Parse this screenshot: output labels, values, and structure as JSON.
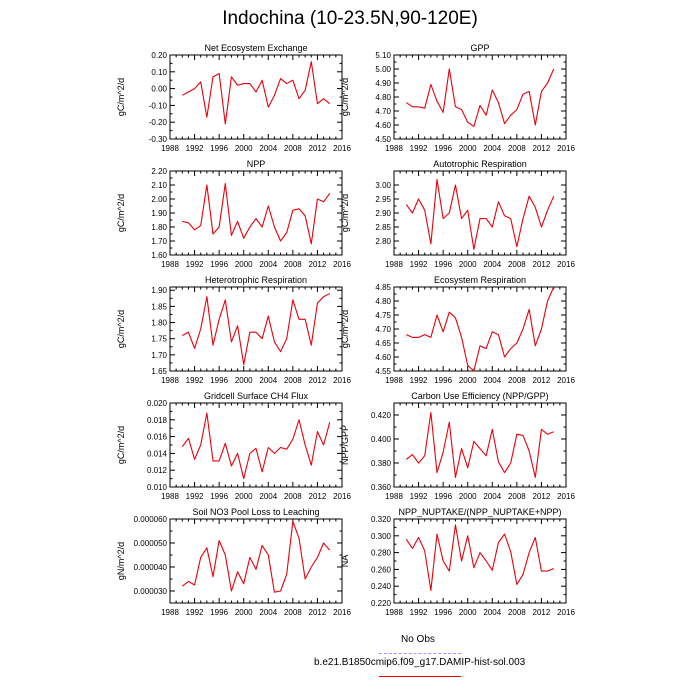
{
  "title": "Indochina (10-23.5N,90-120E)",
  "colors": {
    "series": "#e8000b",
    "obs": "#9999ff",
    "axis": "#000000"
  },
  "legend": {
    "obs_label": "No Obs",
    "model_label": "b.e21.B1850cmip6.f09_g17.DAMIP-hist-sol.003"
  },
  "x_ticks": [
    "1988",
    "1992",
    "1996",
    "2000",
    "2004",
    "2008",
    "2012",
    "2016"
  ],
  "chart_data": [
    {
      "type": "line",
      "title": "Net Ecosystem Exchange",
      "ylabel": "gC/m^2/d",
      "xlim": [
        1988,
        2016
      ],
      "ylim": [
        -0.3,
        0.2
      ],
      "y_ticks": [
        "0.20",
        "0.10",
        "0.00",
        "-0.10",
        "-0.20",
        "-0.30"
      ],
      "x": [
        1990,
        1991,
        1992,
        1993,
        1994,
        1995,
        1996,
        1997,
        1998,
        1999,
        2000,
        2001,
        2002,
        2003,
        2004,
        2005,
        2006,
        2007,
        2008,
        2009,
        2010,
        2011,
        2012,
        2013,
        2014
      ],
      "y": [
        -0.04,
        -0.02,
        0.0,
        0.04,
        -0.17,
        0.07,
        0.09,
        -0.21,
        0.07,
        0.02,
        0.03,
        0.03,
        -0.02,
        0.05,
        -0.11,
        -0.04,
        0.06,
        0.03,
        0.05,
        -0.06,
        -0.01,
        0.16,
        -0.09,
        -0.06,
        -0.09
      ]
    },
    {
      "type": "line",
      "title": "GPP",
      "ylabel": "gC/m^2/d",
      "xlim": [
        1988,
        2016
      ],
      "ylim": [
        4.5,
        5.1
      ],
      "y_ticks": [
        "5.10",
        "5.00",
        "4.90",
        "4.80",
        "4.70",
        "4.60",
        "4.50"
      ],
      "x": [
        1990,
        1991,
        1992,
        1993,
        1994,
        1995,
        1996,
        1997,
        1998,
        1999,
        2000,
        2001,
        2002,
        2003,
        2004,
        2005,
        2006,
        2007,
        2008,
        2009,
        2010,
        2011,
        2012,
        2013,
        2014
      ],
      "y": [
        4.76,
        4.73,
        4.73,
        4.72,
        4.89,
        4.77,
        4.69,
        5.0,
        4.73,
        4.71,
        4.62,
        4.59,
        4.74,
        4.67,
        4.85,
        4.76,
        4.61,
        4.67,
        4.71,
        4.82,
        4.84,
        4.6,
        4.84,
        4.9,
        5.0
      ]
    },
    {
      "type": "line",
      "title": "NPP",
      "ylabel": "gC/m^2/d",
      "xlim": [
        1988,
        2016
      ],
      "ylim": [
        1.6,
        2.2
      ],
      "y_ticks": [
        "2.20",
        "2.10",
        "2.00",
        "1.90",
        "1.80",
        "1.70",
        "1.60"
      ],
      "x": [
        1990,
        1991,
        1992,
        1993,
        1994,
        1995,
        1996,
        1997,
        1998,
        1999,
        2000,
        2001,
        2002,
        2003,
        2004,
        2005,
        2006,
        2007,
        2008,
        2009,
        2010,
        2011,
        2012,
        2013,
        2014
      ],
      "y": [
        1.84,
        1.83,
        1.78,
        1.81,
        2.1,
        1.75,
        1.8,
        2.11,
        1.74,
        1.84,
        1.72,
        1.8,
        1.86,
        1.8,
        1.95,
        1.8,
        1.7,
        1.76,
        1.92,
        1.93,
        1.88,
        1.68,
        2.0,
        1.98,
        2.04
      ]
    },
    {
      "type": "line",
      "title": "Autotrophic Respiration",
      "ylabel": "gC/m^2/d",
      "xlim": [
        1988,
        2016
      ],
      "ylim": [
        2.75,
        3.05
      ],
      "y_ticks": [
        "3.00",
        "2.95",
        "2.90",
        "2.85",
        "2.80"
      ],
      "x": [
        1990,
        1991,
        1992,
        1993,
        1994,
        1995,
        1996,
        1997,
        1998,
        1999,
        2000,
        2001,
        2002,
        2003,
        2004,
        2005,
        2006,
        2007,
        2008,
        2009,
        2010,
        2011,
        2012,
        2013,
        2014
      ],
      "y": [
        2.93,
        2.9,
        2.95,
        2.91,
        2.79,
        3.02,
        2.88,
        2.9,
        3.0,
        2.88,
        2.91,
        2.77,
        2.88,
        2.88,
        2.85,
        2.94,
        2.89,
        2.88,
        2.78,
        2.88,
        2.96,
        2.92,
        2.85,
        2.91,
        2.96
      ]
    },
    {
      "type": "line",
      "title": "Heterotrophic Respiration",
      "ylabel": "gC/m^2/d",
      "xlim": [
        1988,
        2016
      ],
      "ylim": [
        1.65,
        1.91
      ],
      "y_ticks": [
        "1.90",
        "1.85",
        "1.80",
        "1.75",
        "1.70",
        "1.65"
      ],
      "x": [
        1990,
        1991,
        1992,
        1993,
        1994,
        1995,
        1996,
        1997,
        1998,
        1999,
        2000,
        2001,
        2002,
        2003,
        2004,
        2005,
        2006,
        2007,
        2008,
        2009,
        2010,
        2011,
        2012,
        2013,
        2014
      ],
      "y": [
        1.76,
        1.77,
        1.72,
        1.78,
        1.88,
        1.73,
        1.81,
        1.87,
        1.74,
        1.79,
        1.67,
        1.77,
        1.77,
        1.75,
        1.82,
        1.74,
        1.71,
        1.75,
        1.87,
        1.81,
        1.81,
        1.73,
        1.86,
        1.88,
        1.89
      ]
    },
    {
      "type": "line",
      "title": "Ecosystem Respiration",
      "ylabel": "gC/m^2/d",
      "xlim": [
        1988,
        2016
      ],
      "ylim": [
        4.55,
        4.85
      ],
      "y_ticks": [
        "4.85",
        "4.80",
        "4.75",
        "4.70",
        "4.65",
        "4.60",
        "4.55"
      ],
      "x": [
        1990,
        1991,
        1992,
        1993,
        1994,
        1995,
        1996,
        1997,
        1998,
        1999,
        2000,
        2001,
        2002,
        2003,
        2004,
        2005,
        2006,
        2007,
        2008,
        2009,
        2010,
        2011,
        2012,
        2013,
        2014
      ],
      "y": [
        4.68,
        4.67,
        4.67,
        4.68,
        4.67,
        4.75,
        4.69,
        4.76,
        4.74,
        4.67,
        4.57,
        4.55,
        4.64,
        4.63,
        4.69,
        4.68,
        4.6,
        4.63,
        4.65,
        4.7,
        4.77,
        4.64,
        4.7,
        4.8,
        4.85
      ]
    },
    {
      "type": "line",
      "title": "Gridcell Surface CH4 Flux",
      "ylabel": "gC/m^2/d",
      "xlim": [
        1988,
        2016
      ],
      "ylim": [
        0.01,
        0.02
      ],
      "y_ticks": [
        "0.020",
        "0.018",
        "0.016",
        "0.014",
        "0.012",
        "0.010"
      ],
      "x": [
        1990,
        1991,
        1992,
        1993,
        1994,
        1995,
        1996,
        1997,
        1998,
        1999,
        2000,
        2001,
        2002,
        2003,
        2004,
        2005,
        2006,
        2007,
        2008,
        2009,
        2010,
        2011,
        2012,
        2013,
        2014
      ],
      "y": [
        0.0148,
        0.0158,
        0.0133,
        0.015,
        0.0188,
        0.0131,
        0.0131,
        0.0152,
        0.0125,
        0.014,
        0.011,
        0.014,
        0.0146,
        0.0118,
        0.0147,
        0.014,
        0.0147,
        0.0145,
        0.0157,
        0.018,
        0.015,
        0.0126,
        0.0166,
        0.015,
        0.0177
      ]
    },
    {
      "type": "line",
      "title": "Carbon Use Efficiency (NPP/GPP)",
      "ylabel": "NPP/GPP",
      "xlim": [
        1988,
        2016
      ],
      "ylim": [
        0.36,
        0.43
      ],
      "y_ticks": [
        "0.420",
        "0.400",
        "0.380",
        "0.360"
      ],
      "x": [
        1990,
        1991,
        1992,
        1993,
        1994,
        1995,
        1996,
        1997,
        1998,
        1999,
        2000,
        2001,
        2002,
        2003,
        2004,
        2005,
        2006,
        2007,
        2008,
        2009,
        2010,
        2011,
        2012,
        2013,
        2014
      ],
      "y": [
        0.383,
        0.387,
        0.38,
        0.386,
        0.422,
        0.372,
        0.389,
        0.414,
        0.368,
        0.392,
        0.376,
        0.398,
        0.392,
        0.386,
        0.408,
        0.381,
        0.372,
        0.38,
        0.404,
        0.403,
        0.39,
        0.368,
        0.408,
        0.404,
        0.406
      ]
    },
    {
      "type": "line",
      "title": "Soil NO3 Pool Loss to Leaching",
      "ylabel": "gN/m^2/d",
      "xlim": [
        1988,
        2016
      ],
      "ylim": [
        2.5e-05,
        6e-05
      ],
      "y_ticks": [
        "0.000060",
        "0.000050",
        "0.000040",
        "0.000030"
      ],
      "x": [
        1990,
        1991,
        1992,
        1993,
        1994,
        1995,
        1996,
        1997,
        1998,
        1999,
        2000,
        2001,
        2002,
        2003,
        2004,
        2005,
        2006,
        2007,
        2008,
        2009,
        2010,
        2011,
        2012,
        2013,
        2014
      ],
      "y": [
        3.2e-05,
        3.4e-05,
        3.25e-05,
        4.4e-05,
        4.8e-05,
        3.6e-05,
        5.1e-05,
        4.5e-05,
        3e-05,
        3.8e-05,
        3.3e-05,
        4.4e-05,
        3.9e-05,
        4.9e-05,
        4.5e-05,
        2.95e-05,
        3e-05,
        3.7e-05,
        5.9e-05,
        5.2e-05,
        3.5e-05,
        4e-05,
        4.4e-05,
        5e-05,
        4.7e-05
      ]
    },
    {
      "type": "line",
      "title": "NPP_NUPTAKE/(NPP_NUPTAKE+NPP)",
      "ylabel": "NA",
      "xlim": [
        1988,
        2016
      ],
      "ylim": [
        0.22,
        0.32
      ],
      "y_ticks": [
        "0.320",
        "0.300",
        "0.280",
        "0.260",
        "0.240",
        "0.220"
      ],
      "x": [
        1990,
        1991,
        1992,
        1993,
        1994,
        1995,
        1996,
        1997,
        1998,
        1999,
        2000,
        2001,
        2002,
        2003,
        2004,
        2005,
        2006,
        2007,
        2008,
        2009,
        2010,
        2011,
        2012,
        2013,
        2014
      ],
      "y": [
        0.296,
        0.285,
        0.298,
        0.282,
        0.235,
        0.302,
        0.27,
        0.258,
        0.313,
        0.27,
        0.3,
        0.262,
        0.28,
        0.27,
        0.259,
        0.292,
        0.302,
        0.281,
        0.242,
        0.254,
        0.28,
        0.298,
        0.258,
        0.258,
        0.261
      ]
    }
  ]
}
